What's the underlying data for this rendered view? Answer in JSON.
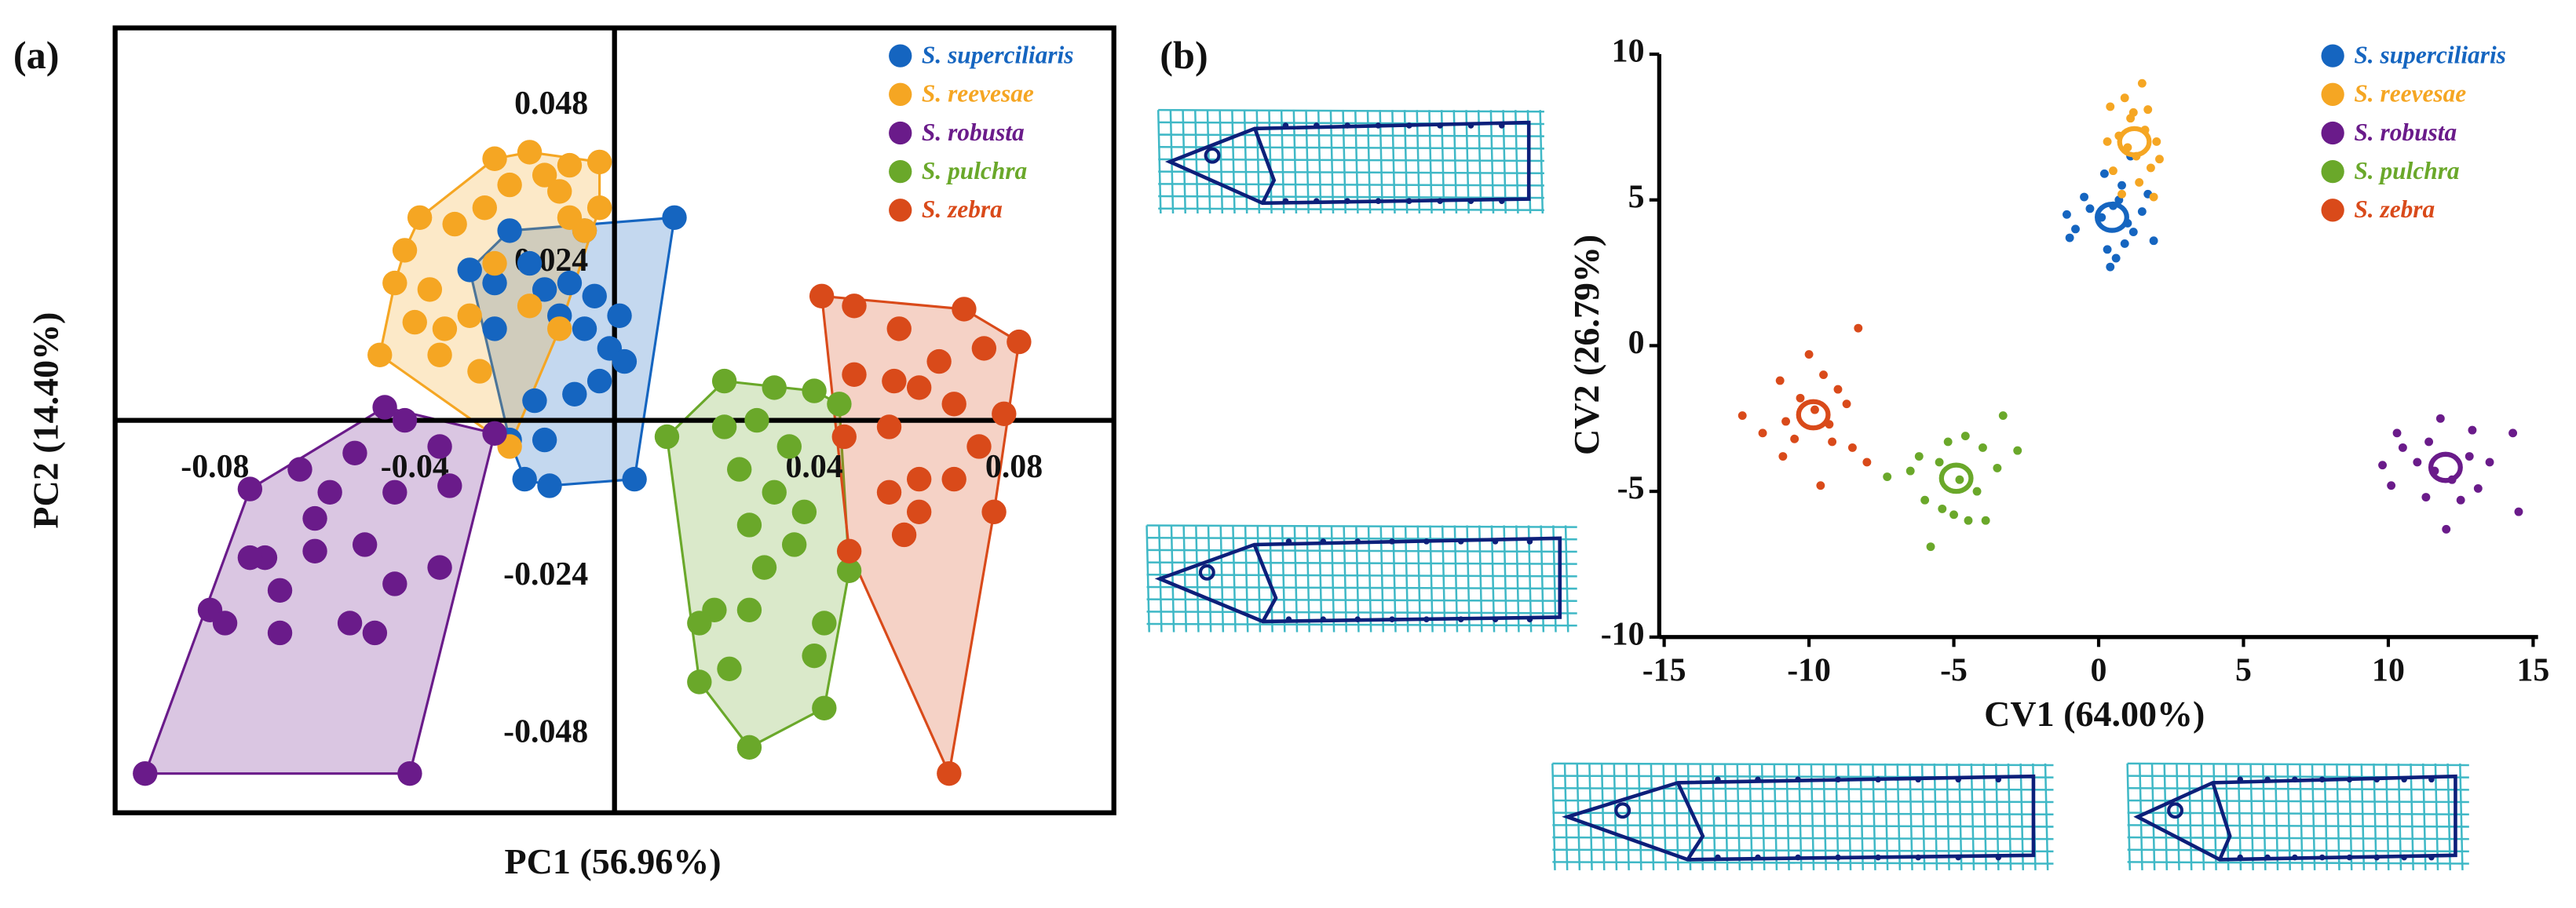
{
  "chart_data": [
    {
      "type": "scatter",
      "label": "(a)",
      "xlabel": "PC1 (56.96%)",
      "ylabel": "PC2 (14.40%)",
      "xlim": [
        -0.1,
        0.1
      ],
      "ylim": [
        -0.06,
        0.06
      ],
      "xticks": [
        -0.08,
        -0.04,
        0.04,
        0.08
      ],
      "yticks": [
        0.048,
        0.024,
        -0.024,
        -0.048
      ],
      "legend": "upper right",
      "hull": true,
      "series": [
        {
          "name": "S. superciliaris",
          "color": "#1565c0",
          "x": [
            0.012,
            -0.006,
            -0.021,
            -0.029,
            -0.024,
            -0.017,
            -0.014,
            -0.009,
            -0.004,
            0.001,
            -0.001,
            0.002,
            -0.003,
            -0.008,
            -0.016,
            -0.014,
            -0.021,
            -0.018,
            -0.013,
            0.004,
            -0.024,
            -0.011,
            -0.006
          ],
          "y": [
            0.031,
            0.029,
            0.029,
            0.023,
            0.021,
            0.024,
            0.02,
            0.021,
            0.019,
            0.016,
            0.011,
            0.009,
            0.006,
            0.004,
            0.003,
            -0.003,
            -0.003,
            -0.009,
            -0.01,
            -0.009,
            0.014,
            0.016,
            0.014
          ]
        },
        {
          "name": "S. reevesae",
          "color": "#f5a623",
          "x": [
            -0.024,
            -0.017,
            -0.009,
            -0.003,
            -0.011,
            -0.021,
            -0.026,
            -0.032,
            -0.039,
            -0.042,
            -0.044,
            -0.037,
            -0.04,
            -0.047,
            -0.034,
            -0.029,
            -0.035,
            -0.027,
            -0.024,
            -0.017,
            -0.011,
            -0.006,
            -0.003,
            -0.009,
            -0.021,
            -0.014
          ],
          "y": [
            0.04,
            0.041,
            0.039,
            0.0395,
            0.035,
            0.036,
            0.0325,
            0.03,
            0.031,
            0.026,
            0.021,
            0.02,
            0.015,
            0.01,
            0.014,
            0.016,
            0.01,
            0.0075,
            0.024,
            0.0175,
            0.014,
            0.029,
            0.0325,
            0.031,
            -0.004,
            0.0375
          ]
        },
        {
          "name": "S. robusta",
          "color": "#6a1b8a",
          "x": [
            -0.094,
            -0.041,
            -0.046,
            -0.042,
            -0.035,
            -0.033,
            -0.044,
            -0.052,
            -0.063,
            -0.073,
            -0.06,
            -0.07,
            -0.081,
            -0.067,
            -0.06,
            -0.05,
            -0.044,
            -0.035,
            -0.048,
            -0.053,
            -0.067,
            -0.078,
            -0.073,
            -0.057,
            -0.024
          ],
          "y": [
            -0.054,
            -0.054,
            0.002,
            0,
            -0.004,
            -0.01,
            -0.011,
            -0.005,
            -0.0075,
            -0.0105,
            -0.015,
            -0.021,
            -0.029,
            -0.026,
            -0.02,
            -0.019,
            -0.025,
            -0.0225,
            -0.0325,
            -0.031,
            -0.0325,
            -0.031,
            -0.021,
            -0.011,
            -0.002
          ]
        },
        {
          "name": "S. pulchra",
          "color": "#6aa82a",
          "x": [
            0.0105,
            0.022,
            0.032,
            0.04,
            0.0285,
            0.035,
            0.025,
            0.032,
            0.038,
            0.027,
            0.036,
            0.047,
            0.03,
            0.02,
            0.017,
            0.027,
            0.042,
            0.04,
            0.023,
            0.017,
            0.042,
            0.027,
            0.022,
            0.045
          ],
          "y": [
            -0.0025,
            0.006,
            0.005,
            0.0045,
            0,
            -0.004,
            -0.0075,
            -0.011,
            -0.014,
            -0.016,
            -0.019,
            -0.023,
            -0.0225,
            -0.029,
            -0.031,
            -0.029,
            -0.031,
            -0.036,
            -0.038,
            -0.04,
            -0.044,
            -0.05,
            -0.001,
            0.0025
          ]
        },
        {
          "name": "S. zebra",
          "color": "#d94a1a",
          "x": [
            0.0415,
            0.048,
            0.057,
            0.07,
            0.081,
            0.074,
            0.065,
            0.056,
            0.048,
            0.061,
            0.068,
            0.078,
            0.073,
            0.055,
            0.046,
            0.061,
            0.068,
            0.055,
            0.076,
            0.061,
            0.047,
            0.058,
            0.067
          ],
          "y": [
            0.019,
            0.0175,
            0.014,
            0.017,
            0.012,
            0.011,
            0.009,
            0.006,
            0.007,
            0.005,
            0.0025,
            0.001,
            -0.004,
            -0.001,
            -0.0025,
            -0.009,
            -0.009,
            -0.011,
            -0.014,
            -0.014,
            -0.02,
            -0.0175,
            -0.054
          ]
        }
      ]
    },
    {
      "type": "scatter",
      "label": "(b)",
      "xlabel": "CV1 (64.00%)",
      "ylabel": "CV2 (26.79%)",
      "xlim": [
        -15,
        15
      ],
      "ylim": [
        -10,
        10
      ],
      "xticks": [
        -15,
        -10,
        -5,
        0,
        5,
        10,
        15
      ],
      "yticks": [
        -10,
        -5,
        0,
        5,
        10
      ],
      "legend": "upper right",
      "ellipse": true,
      "series": [
        {
          "name": "S. superciliaris",
          "color": "#1565c0",
          "x": [
            0.1,
            0.5,
            1,
            -0.3,
            0.8,
            1.2,
            -0.8,
            0.3,
            1.5,
            0.6,
            -1,
            0.2,
            1.7,
            -0.5,
            1.1,
            0.4,
            1.9,
            -1.1,
            0.9,
            0.7
          ],
          "y": [
            4.4,
            4.8,
            4.2,
            4.7,
            5.5,
            3.9,
            4,
            3.3,
            4.6,
            3,
            3.7,
            5.9,
            5.2,
            5.1,
            6.5,
            2.7,
            3.6,
            4.5,
            3.5,
            5
          ]
        },
        {
          "name": "S. reevesae",
          "color": "#f5a623",
          "x": [
            1,
            1.3,
            0.7,
            1.6,
            0.5,
            1.8,
            1.2,
            0.9,
            1.5,
            2,
            0.3,
            1.4,
            2.1,
            0.8,
            1.1,
            1.7,
            0.4,
            1.9
          ],
          "y": [
            6.8,
            6.5,
            7.2,
            7.4,
            6,
            6.1,
            8,
            8.5,
            9,
            7,
            7,
            5.6,
            6.4,
            5.2,
            7.8,
            8.1,
            8.2,
            5.1
          ]
        },
        {
          "name": "S. robusta",
          "color": "#6a1b8a",
          "x": [
            11.6,
            11,
            12.2,
            10.5,
            12.8,
            11.3,
            10.1,
            12.5,
            13.5,
            14.3,
            14.5,
            11.8,
            12,
            10.3,
            13.1,
            9.8,
            11.4,
            12.9
          ],
          "y": [
            -4.3,
            -4,
            -4.6,
            -3.5,
            -3.8,
            -5.2,
            -4.8,
            -5.3,
            -4,
            -3,
            -5.7,
            -2.5,
            -6.3,
            -3,
            -4.9,
            -4.1,
            -3.3,
            -2.9
          ]
        },
        {
          "name": "S. pulchra",
          "color": "#6aa82a",
          "x": [
            -4.8,
            -5.5,
            -4.2,
            -6,
            -3.5,
            -5.2,
            -4.5,
            -6.5,
            -3.3,
            -7.3,
            -5.8,
            -4,
            -5,
            -2.8,
            -3.9,
            -6.2,
            -4.6,
            -5.4
          ],
          "y": [
            -4.6,
            -4,
            -5,
            -5.3,
            -4.2,
            -3.3,
            -6,
            -4.3,
            -2.4,
            -4.5,
            -6.9,
            -3.5,
            -5.8,
            -3.6,
            -6,
            -3.8,
            -3.1,
            -5.6
          ]
        },
        {
          "name": "S. zebra",
          "color": "#d94a1a",
          "x": [
            -9.8,
            -10.3,
            -9.3,
            -10.8,
            -9,
            -10.5,
            -8.5,
            -11,
            -9.5,
            -8.3,
            -12.3,
            -9.6,
            -11.6,
            -8.7,
            -10,
            -9.2,
            -8,
            -10.9
          ],
          "y": [
            -2.2,
            -1.8,
            -2.7,
            -2.6,
            -1.5,
            -3.2,
            -3.5,
            -1.2,
            -1,
            0.6,
            -2.4,
            -4.8,
            -3,
            -2,
            -0.3,
            -3.3,
            -4,
            -3.8
          ]
        }
      ]
    }
  ]
}
